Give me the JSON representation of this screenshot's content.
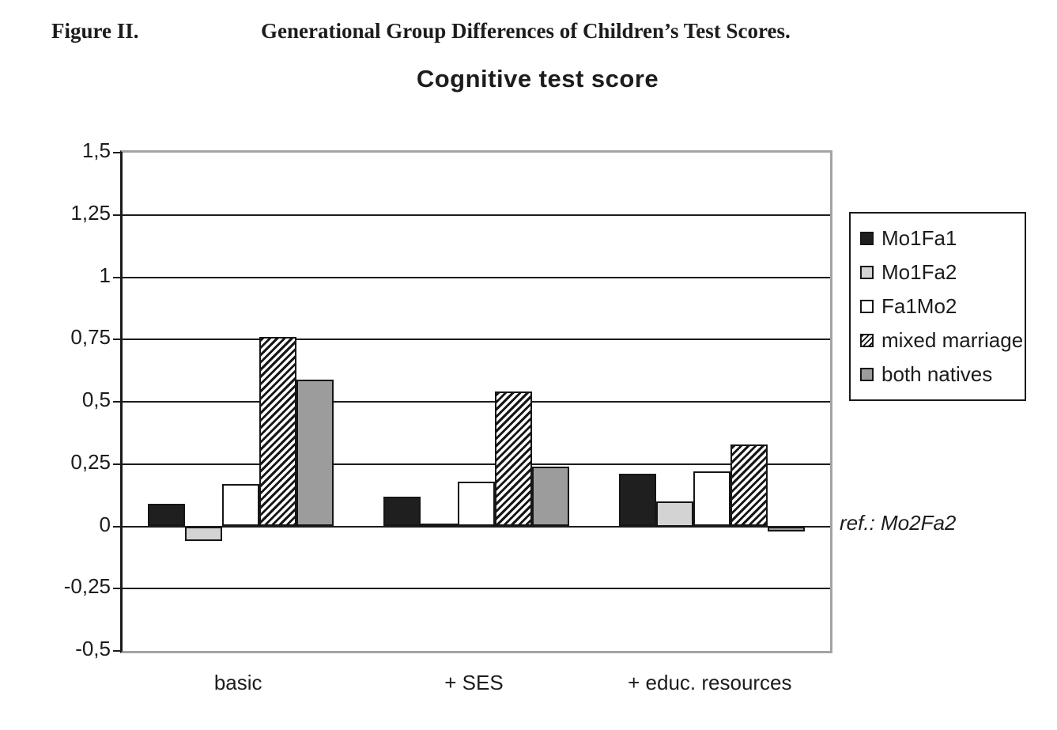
{
  "figure": {
    "label": "Figure II.",
    "caption": "Generational Group Differences of Children’s Test Scores."
  },
  "chart_data": {
    "type": "bar",
    "title": "Cognitive test score",
    "xlabel": "",
    "ylabel": "",
    "categories": [
      "basic",
      "+ SES",
      "+ educ. resources"
    ],
    "series": [
      {
        "name": "Mo1Fa1",
        "style": "solid-black",
        "color": "#1f1f1f",
        "values": [
          0.09,
          0.12,
          0.21
        ]
      },
      {
        "name": "Mo1Fa2",
        "style": "light-gray",
        "color": "#d3d3d3",
        "values": [
          -0.06,
          0.01,
          0.1
        ]
      },
      {
        "name": "Fa1Mo2",
        "style": "white",
        "color": "#ffffff",
        "values": [
          0.17,
          0.18,
          0.22
        ]
      },
      {
        "name": "mixed marriage",
        "style": "hatch",
        "color": "#ffffff",
        "values": [
          0.76,
          0.54,
          0.33
        ]
      },
      {
        "name": "both natives",
        "style": "medium-gray",
        "color": "#9c9c9c",
        "values": [
          0.59,
          0.24,
          -0.02
        ]
      }
    ],
    "ylim": [
      -0.5,
      1.5
    ],
    "yticks": [
      1.5,
      1.25,
      1,
      0.75,
      0.5,
      0.25,
      0,
      -0.25,
      -0.5
    ],
    "ytick_labels": [
      "1,5",
      "1,25",
      "1",
      "0,75",
      "0,5",
      "0,25",
      "0",
      "-0,25",
      "-0,5"
    ],
    "grid": true,
    "legend_position": "right",
    "annotation": "ref.: Mo2Fa2",
    "colors": {
      "bar_border": "#161616",
      "gridline": "#1c1c1c",
      "frame_gray": "#a3a3a3",
      "axis_black": "#1a1a1a",
      "text": "#1c1c1c"
    }
  }
}
